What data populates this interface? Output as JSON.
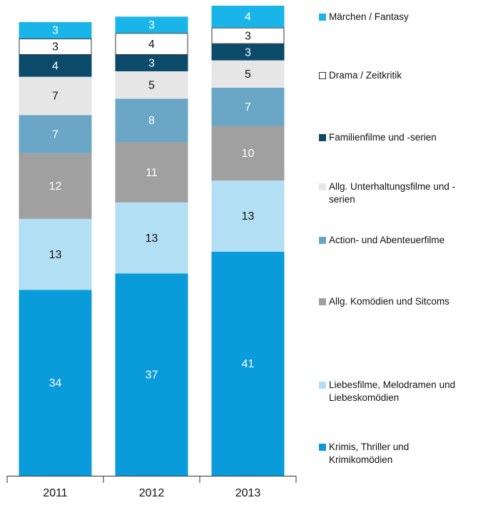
{
  "chart_data": {
    "type": "stacked-bar",
    "categories": [
      "2011",
      "2012",
      "2013"
    ],
    "series": [
      {
        "name": "Krimis, Thriller und Krimikomödien",
        "color": "#0a9bdb",
        "values": [
          34,
          37,
          41
        ]
      },
      {
        "name": "Liebesfilme, Melodramen und Liebeskomödien",
        "color": "#b3dff5",
        "values": [
          13,
          13,
          13
        ]
      },
      {
        "name": "Allg. Komödien und Sitcoms",
        "color": "#a0a0a0",
        "values": [
          12,
          11,
          10
        ]
      },
      {
        "name": "Action- und Abenteuerfilme",
        "color": "#6aa7c6",
        "values": [
          7,
          8,
          7
        ]
      },
      {
        "name": "Allg. Unterhaltungsfilme und -serien",
        "color": "#e6e6e6",
        "values": [
          7,
          5,
          5
        ]
      },
      {
        "name": "Familienfilme und -serien",
        "color": "#0b4a69",
        "values": [
          4,
          3,
          3
        ]
      },
      {
        "name": "Drama / Zeitkritik",
        "color": "#ffffff",
        "values": [
          3,
          4,
          3
        ]
      },
      {
        "name": "Märchen / Fantasy",
        "color": "#19b5e8",
        "values": [
          3,
          3,
          4
        ]
      }
    ]
  }
}
